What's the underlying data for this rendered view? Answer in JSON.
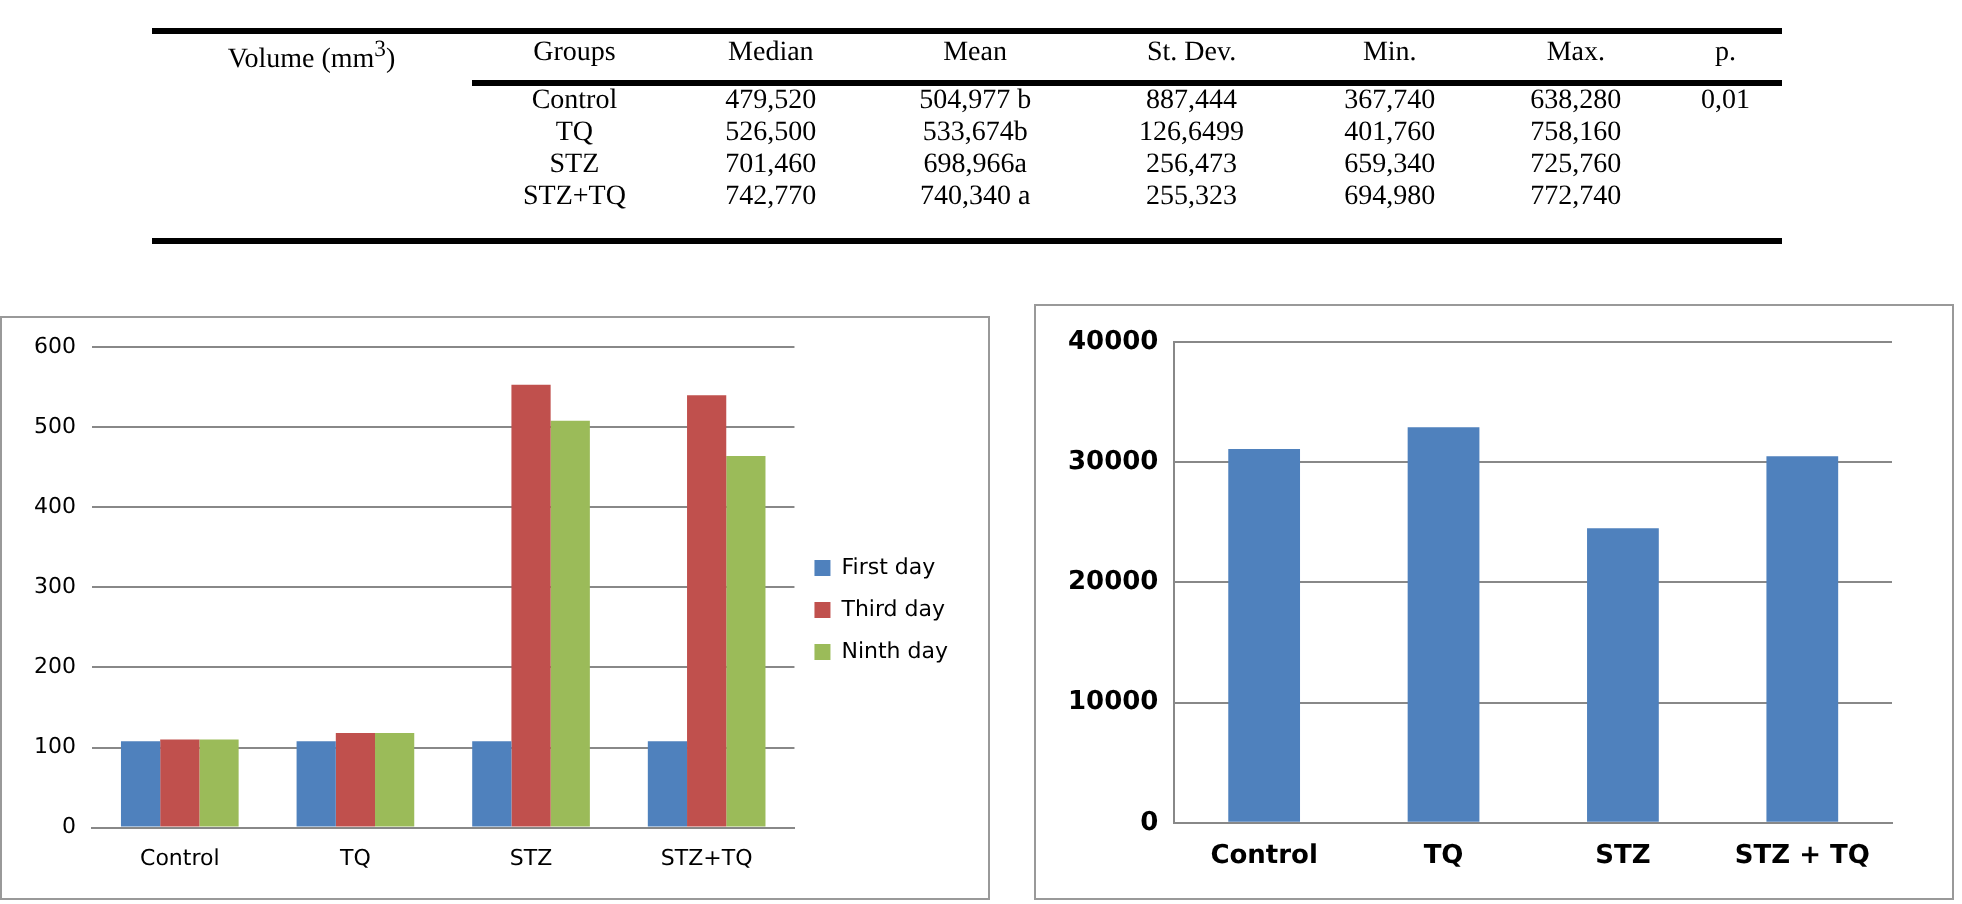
{
  "chart_data": [
    {
      "type": "other",
      "ylabel": "Volume (mm$^{3}$)",
      "categories": [
        "Groups",
        "Median",
        "Mean",
        "St. Dev.",
        "Min.",
        "Max.",
        "p."
      ],
      "annotations": [
        "Control",
        "479,520",
        "504,977 b",
        "887,444",
        "367,740",
        "638,280",
        "TQ",
        "526,500",
        "533,674b",
        "126,6499",
        "401,760",
        "758,160",
        "STZ",
        "701,460",
        "698,966a",
        "256,473",
        "659,340",
        "725,760",
        "STZ+TQ",
        "742,770",
        "740,340 a",
        "255,323",
        "694,980",
        "772,740",
        "0,01"
      ]
    },
    {
      "type": "bar",
      "categories": [
        "Control",
        "TQ",
        "STZ",
        "STZ+TQ"
      ],
      "series": [
        {
          "name": "First day",
          "color": "#4f81bd",
          "values": [
            108,
            108,
            108,
            108
          ]
        },
        {
          "name": "Third day",
          "color": "#c0504d",
          "values": [
            110,
            118,
            553,
            540
          ]
        },
        {
          "name": "Ninth day",
          "color": "#9bbb59",
          "values": [
            110,
            118,
            508,
            464
          ]
        }
      ],
      "ylim": [
        0,
        600
      ],
      "yticks": [
        0,
        100,
        200,
        300,
        400,
        500,
        600
      ],
      "grid": "y",
      "legend": "right"
    },
    {
      "type": "bar",
      "categories": [
        "Control",
        "TQ",
        "STZ",
        "STZ + TQ"
      ],
      "color": "#4f81bd",
      "values": [
        31100,
        32900,
        24500,
        30500
      ],
      "ylim": [
        0,
        40000
      ],
      "yticks": [
        0,
        10000,
        20000,
        30000,
        40000
      ],
      "grid": "y",
      "legend": false
    }
  ]
}
